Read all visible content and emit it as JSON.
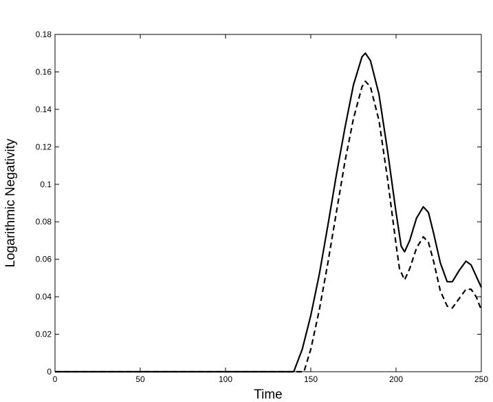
{
  "chart_data": {
    "type": "line",
    "xlabel": "Time",
    "ylabel": "Logarithmic Negativity",
    "xlim": [
      0,
      250
    ],
    "ylim": [
      0,
      0.18
    ],
    "xticks": [
      0,
      50,
      100,
      150,
      200,
      250
    ],
    "yticks": [
      0,
      0.02,
      0.04,
      0.06,
      0.08,
      0.1,
      0.12,
      0.14,
      0.16,
      0.18
    ],
    "grid": false,
    "series": [
      {
        "color": "#000000",
        "dash": false,
        "x": [
          0,
          140,
          145,
          150,
          155,
          160,
          165,
          170,
          175,
          180,
          182,
          185,
          190,
          195,
          200,
          203,
          205,
          208,
          212,
          216,
          219,
          222,
          226,
          230,
          233,
          237,
          241,
          244,
          247,
          250
        ],
        "values": [
          0,
          0,
          0.012,
          0.03,
          0.052,
          0.078,
          0.105,
          0.13,
          0.153,
          0.168,
          0.17,
          0.166,
          0.148,
          0.118,
          0.085,
          0.067,
          0.064,
          0.07,
          0.082,
          0.088,
          0.085,
          0.074,
          0.058,
          0.048,
          0.048,
          0.054,
          0.059,
          0.057,
          0.051,
          0.045
        ]
      },
      {
        "color": "#000000",
        "dash": true,
        "x": [
          0,
          146,
          150,
          155,
          160,
          165,
          170,
          175,
          180,
          182,
          185,
          190,
          195,
          200,
          202,
          205,
          208,
          212,
          216,
          219,
          222,
          226,
          230,
          233,
          237,
          241,
          244,
          247,
          250
        ],
        "values": [
          0,
          0,
          0.012,
          0.033,
          0.058,
          0.085,
          0.112,
          0.135,
          0.152,
          0.155,
          0.152,
          0.134,
          0.103,
          0.068,
          0.055,
          0.049,
          0.055,
          0.066,
          0.072,
          0.069,
          0.059,
          0.043,
          0.035,
          0.034,
          0.039,
          0.044,
          0.044,
          0.04,
          0.033
        ]
      }
    ]
  }
}
